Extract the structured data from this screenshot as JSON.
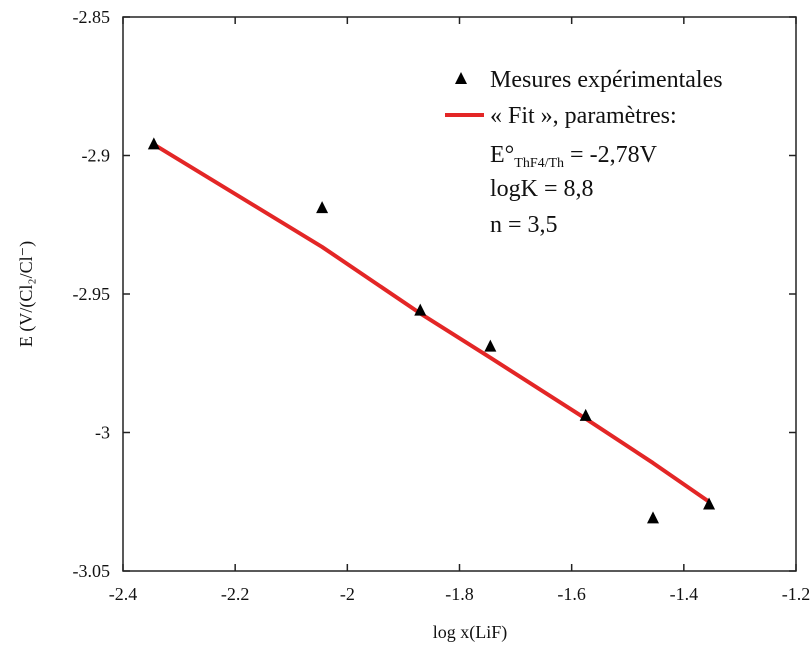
{
  "chart_data": {
    "type": "scatter",
    "xlabel": "log x(LiF)",
    "ylabel": "E (V/(Cl₂/Cl⁻)",
    "xlim": [
      -2.4,
      -1.2
    ],
    "ylim": [
      -3.05,
      -2.85
    ],
    "xticks": [
      -2.4,
      -2.2,
      -2,
      -1.8,
      -1.6,
      -1.4,
      -1.2
    ],
    "xtick_labels": [
      "-2.4",
      "-2.2",
      "-2",
      "-1.8",
      "-1.6",
      "-1.4",
      "-1.2"
    ],
    "yticks": [
      -2.85,
      -2.9,
      -2.95,
      -3,
      -3.05
    ],
    "ytick_labels": [
      "-2.85",
      "-2.9",
      "-2.95",
      "-3",
      "-3.05"
    ],
    "grid": false,
    "legend_position": "top-right",
    "series": [
      {
        "name": "Mesures expérimentales",
        "kind": "scatter",
        "marker": "triangle",
        "color": "#000000",
        "x": [
          -2.345,
          -2.045,
          -1.87,
          -1.745,
          -1.575,
          -1.455,
          -1.355
        ],
        "y": [
          -2.896,
          -2.919,
          -2.956,
          -2.969,
          -2.994,
          -3.031,
          -3.026
        ]
      },
      {
        "name": "« Fit », paramètres:",
        "kind": "line",
        "color": "#e32626",
        "x": [
          -2.345,
          -2.045,
          -1.87,
          -1.745,
          -1.575,
          -1.455,
          -1.355
        ],
        "y": [
          -2.896,
          -2.933,
          -2.957,
          -2.973,
          -2.995,
          -3.011,
          -3.025
        ]
      }
    ],
    "annotations": {
      "e0_prefix": "E°",
      "e0_subscript": "ThF4/Th",
      "e0_value": " = -2,78V",
      "logk": "logK = 8,8",
      "n": "n = 3,5"
    }
  }
}
